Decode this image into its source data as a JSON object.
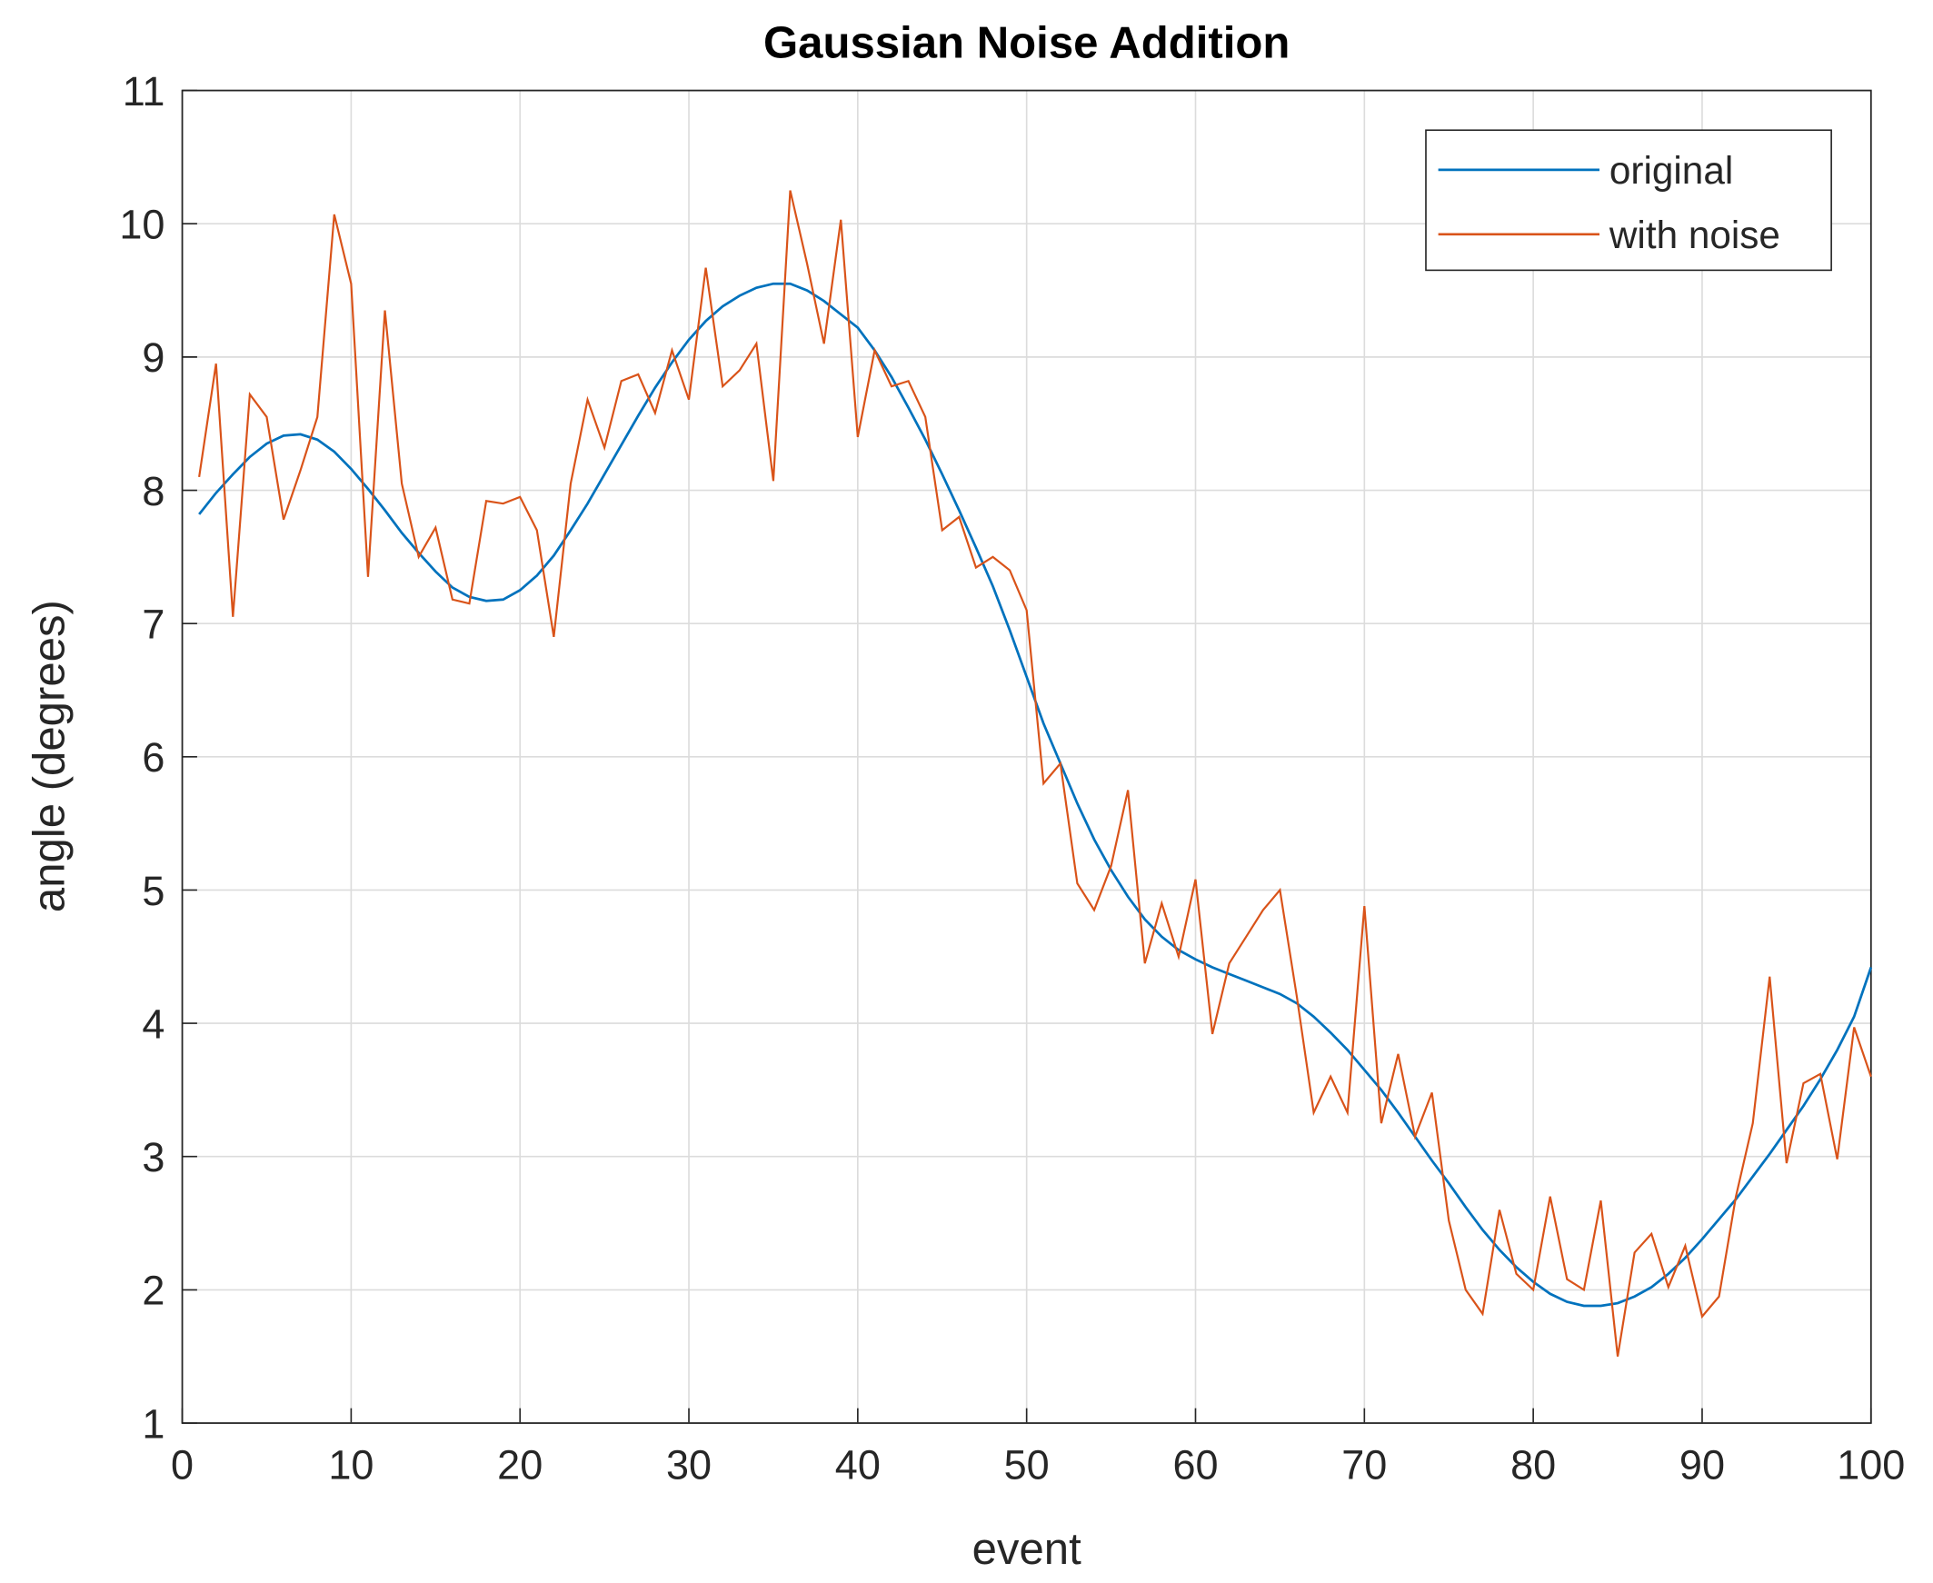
{
  "chart_data": {
    "type": "line",
    "title": "Gaussian Noise Addition",
    "x_label": "event",
    "y_label": "angle (degrees)",
    "x": [
      1,
      2,
      3,
      4,
      5,
      6,
      7,
      8,
      9,
      10,
      11,
      12,
      13,
      14,
      15,
      16,
      17,
      18,
      19,
      20,
      21,
      22,
      23,
      24,
      25,
      26,
      27,
      28,
      29,
      30,
      31,
      32,
      33,
      34,
      35,
      36,
      37,
      38,
      39,
      40,
      41,
      42,
      43,
      44,
      45,
      46,
      47,
      48,
      49,
      50,
      51,
      52,
      53,
      54,
      55,
      56,
      57,
      58,
      59,
      60,
      61,
      62,
      63,
      64,
      65,
      66,
      67,
      68,
      69,
      70,
      71,
      72,
      73,
      74,
      75,
      76,
      77,
      78,
      79,
      80,
      81,
      82,
      83,
      84,
      85,
      86,
      87,
      88,
      89,
      90,
      91,
      92,
      93,
      94,
      95,
      96,
      97,
      98,
      99,
      100
    ],
    "series": [
      {
        "name": "original",
        "color": "#0072bd",
        "values": [
          7.82,
          7.98,
          8.12,
          8.25,
          8.35,
          8.41,
          8.42,
          8.38,
          8.29,
          8.16,
          8.01,
          7.85,
          7.68,
          7.53,
          7.39,
          7.27,
          7.2,
          7.17,
          7.18,
          7.25,
          7.36,
          7.51,
          7.7,
          7.9,
          8.12,
          8.34,
          8.56,
          8.77,
          8.96,
          9.13,
          9.27,
          9.38,
          9.46,
          9.52,
          9.55,
          9.55,
          9.5,
          9.42,
          9.32,
          9.22,
          9.05,
          8.85,
          8.62,
          8.38,
          8.12,
          7.85,
          7.57,
          7.28,
          6.95,
          6.6,
          6.25,
          5.95,
          5.65,
          5.38,
          5.15,
          4.95,
          4.78,
          4.65,
          4.55,
          4.48,
          4.42,
          4.37,
          4.32,
          4.27,
          4.22,
          4.15,
          4.05,
          3.93,
          3.8,
          3.65,
          3.5,
          3.33,
          3.15,
          2.97,
          2.8,
          2.62,
          2.45,
          2.3,
          2.17,
          2.06,
          1.97,
          1.91,
          1.88,
          1.88,
          1.9,
          1.95,
          2.02,
          2.12,
          2.24,
          2.38,
          2.53,
          2.68,
          2.85,
          3.02,
          3.2,
          3.38,
          3.58,
          3.8,
          4.05,
          4.42
        ]
      },
      {
        "name": "with noise",
        "color": "#d95319",
        "values": [
          8.1,
          8.95,
          7.05,
          8.72,
          8.55,
          7.78,
          8.15,
          8.55,
          10.07,
          9.55,
          7.35,
          9.35,
          8.05,
          7.5,
          7.72,
          7.18,
          7.15,
          7.92,
          7.9,
          7.95,
          7.7,
          6.9,
          8.05,
          8.68,
          8.32,
          8.82,
          8.87,
          8.58,
          9.05,
          8.68,
          9.67,
          8.78,
          8.9,
          9.1,
          8.07,
          10.25,
          9.7,
          9.1,
          10.03,
          8.4,
          9.05,
          8.78,
          8.82,
          8.55,
          7.7,
          7.8,
          7.42,
          7.5,
          7.4,
          7.1,
          5.8,
          5.95,
          5.05,
          4.85,
          5.18,
          5.75,
          4.45,
          4.9,
          4.5,
          5.08,
          3.92,
          4.45,
          4.65,
          4.85,
          5.0,
          4.2,
          3.33,
          3.6,
          3.33,
          4.88,
          3.25,
          3.77,
          3.15,
          3.48,
          2.52,
          2.0,
          1.82,
          2.6,
          2.12,
          2.0,
          2.7,
          2.08,
          2.0,
          2.67,
          1.5,
          2.28,
          2.42,
          2.02,
          2.33,
          1.8,
          1.95,
          2.7,
          3.25,
          4.35,
          2.95,
          3.55,
          3.62,
          2.98,
          3.97,
          3.6
        ]
      }
    ],
    "xlim": [
      0,
      100
    ],
    "xticks": [
      0,
      10,
      20,
      30,
      40,
      50,
      60,
      70,
      80,
      90,
      100
    ],
    "ylim": [
      1,
      11
    ],
    "yticks": [
      1,
      2,
      3,
      4,
      5,
      6,
      7,
      8,
      9,
      10,
      11
    ],
    "grid": true,
    "legend": "upper right"
  }
}
